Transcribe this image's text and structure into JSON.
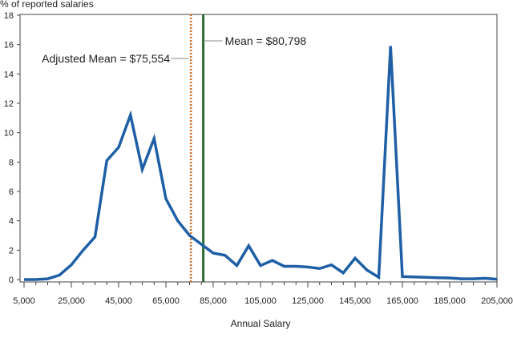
{
  "chart_data": {
    "type": "line",
    "ylabel": "% of reported salaries",
    "xlabel": "Annual Salary",
    "xlim": [
      5000,
      205000
    ],
    "ylim": [
      0,
      18
    ],
    "x_ticks": [
      5000,
      25000,
      45000,
      65000,
      85000,
      105000,
      125000,
      145000,
      165000,
      185000,
      205000
    ],
    "x_tick_labels": [
      "5,000",
      "25,000",
      "45,000",
      "65,000",
      "85,000",
      "105,000",
      "125,000",
      "145,000",
      "165,000",
      "185,000",
      "205,000"
    ],
    "y_ticks": [
      0,
      2,
      4,
      6,
      8,
      10,
      12,
      14,
      16,
      18
    ],
    "y_tick_labels": [
      "0",
      "2",
      "4",
      "6",
      "8",
      "10",
      "12",
      "14",
      "16",
      "18"
    ],
    "grid": false,
    "series": [
      {
        "color": "#1f5fa6",
        "x": [
          5000,
          10000,
          15000,
          20000,
          25000,
          30000,
          35000,
          40000,
          45000,
          50000,
          55000,
          60000,
          65000,
          70000,
          75000,
          80000,
          85000,
          90000,
          95000,
          100000,
          105000,
          110000,
          115000,
          120000,
          125000,
          130000,
          135000,
          140000,
          145000,
          150000,
          155000,
          160000,
          165000,
          170000,
          175000,
          180000,
          185000,
          190000,
          195000,
          200000,
          205000
        ],
        "y": [
          0,
          0,
          0.05,
          0.3,
          1.0,
          2.0,
          2.9,
          8.1,
          9.0,
          11.2,
          7.5,
          9.6,
          5.5,
          4.0,
          3.0,
          2.4,
          1.8,
          1.65,
          0.95,
          2.3,
          0.95,
          1.3,
          0.9,
          0.9,
          0.85,
          0.75,
          1.0,
          0.45,
          1.45,
          0.65,
          0.15,
          15.9,
          0.2,
          0.18,
          0.15,
          0.12,
          0.1,
          0.05,
          0.05,
          0.08,
          0.02
        ]
      }
    ],
    "reference_lines": [
      {
        "value": 75554,
        "label": "Adjusted Mean = $75,554",
        "color": "#d2691e",
        "style": "dotted"
      },
      {
        "value": 80798,
        "label": "Mean = $80,798",
        "color": "#2e6b3a",
        "style": "solid"
      }
    ]
  }
}
